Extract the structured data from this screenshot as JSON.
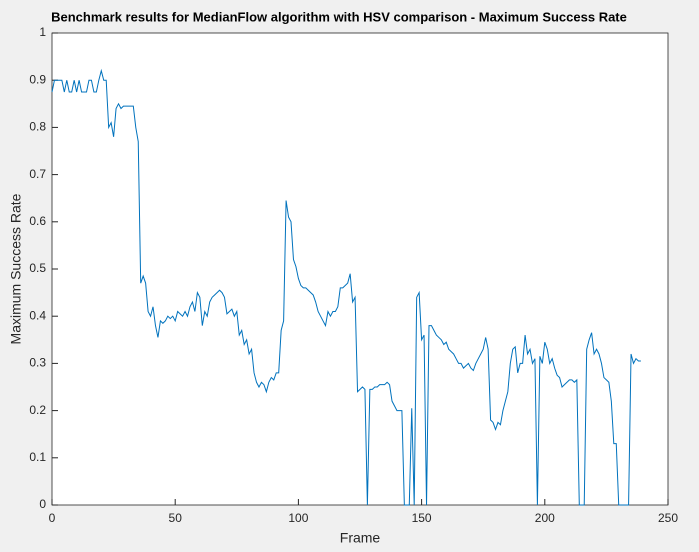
{
  "chart_data": {
    "type": "line",
    "title": "Benchmark results for MedianFlow algorithm with HSV comparison - Maximum Success Rate",
    "x_label": "Frame",
    "y_label": "Maximum Success Rate",
    "xlim": [
      0,
      250
    ],
    "xticks": [
      0,
      50,
      100,
      150,
      200,
      250
    ],
    "ylim": [
      0,
      1
    ],
    "yticks": [
      0,
      0.1,
      0.2,
      0.3,
      0.4,
      0.5,
      0.6,
      0.7,
      0.8,
      0.9,
      1
    ],
    "x": [
      0,
      1,
      2,
      3,
      4,
      5,
      6,
      7,
      8,
      9,
      10,
      11,
      12,
      13,
      14,
      15,
      16,
      17,
      18,
      19,
      20,
      21,
      22,
      23,
      24,
      25,
      26,
      27,
      28,
      29,
      30,
      31,
      32,
      33,
      34,
      35,
      36,
      37,
      38,
      39,
      40,
      41,
      42,
      43,
      44,
      45,
      46,
      47,
      48,
      49,
      50,
      51,
      52,
      53,
      54,
      55,
      56,
      57,
      58,
      59,
      60,
      61,
      62,
      63,
      64,
      65,
      66,
      67,
      68,
      69,
      70,
      71,
      72,
      73,
      74,
      75,
      76,
      77,
      78,
      79,
      80,
      81,
      82,
      83,
      84,
      85,
      86,
      87,
      88,
      89,
      90,
      91,
      92,
      93,
      94,
      95,
      96,
      97,
      98,
      99,
      100,
      101,
      102,
      103,
      104,
      105,
      106,
      107,
      108,
      109,
      110,
      111,
      112,
      113,
      114,
      115,
      116,
      117,
      118,
      119,
      120,
      121,
      122,
      123,
      124,
      125,
      126,
      127,
      128,
      129,
      130,
      131,
      132,
      133,
      134,
      135,
      136,
      137,
      138,
      139,
      140,
      141,
      142,
      143,
      144,
      145,
      146,
      147,
      148,
      149,
      150,
      151,
      152,
      153,
      154,
      155,
      156,
      157,
      158,
      159,
      160,
      161,
      162,
      163,
      164,
      165,
      166,
      167,
      168,
      169,
      170,
      171,
      172,
      173,
      174,
      175,
      176,
      177,
      178,
      179,
      180,
      181,
      182,
      183,
      184,
      185,
      186,
      187,
      188,
      189,
      190,
      191,
      192,
      193,
      194,
      195,
      196,
      197,
      198,
      199,
      200,
      201,
      202,
      203,
      204,
      205,
      206,
      207,
      208,
      209,
      210,
      211,
      212,
      213,
      214,
      215,
      216,
      217,
      218,
      219,
      220,
      221,
      222,
      223,
      224,
      225,
      226,
      227,
      228,
      229,
      230,
      231,
      232,
      233,
      234,
      235,
      236,
      237,
      238,
      239
    ],
    "series": [
      {
        "name": "Maximum Success Rate",
        "color": "#0072bd",
        "values": [
          0.875,
          0.9,
          0.9,
          0.9,
          0.9,
          0.875,
          0.9,
          0.875,
          0.875,
          0.9,
          0.875,
          0.9,
          0.875,
          0.875,
          0.875,
          0.9,
          0.9,
          0.875,
          0.875,
          0.9,
          0.92,
          0.9,
          0.9,
          0.8,
          0.81,
          0.78,
          0.84,
          0.85,
          0.84,
          0.845,
          0.845,
          0.845,
          0.845,
          0.845,
          0.8,
          0.77,
          0.47,
          0.485,
          0.47,
          0.41,
          0.4,
          0.42,
          0.38,
          0.355,
          0.39,
          0.385,
          0.39,
          0.4,
          0.395,
          0.4,
          0.39,
          0.41,
          0.405,
          0.4,
          0.41,
          0.4,
          0.42,
          0.43,
          0.41,
          0.45,
          0.44,
          0.38,
          0.41,
          0.4,
          0.43,
          0.44,
          0.445,
          0.45,
          0.455,
          0.45,
          0.44,
          0.405,
          0.41,
          0.415,
          0.4,
          0.41,
          0.36,
          0.37,
          0.34,
          0.35,
          0.32,
          0.33,
          0.28,
          0.26,
          0.25,
          0.26,
          0.255,
          0.24,
          0.26,
          0.27,
          0.265,
          0.28,
          0.28,
          0.37,
          0.39,
          0.645,
          0.61,
          0.6,
          0.52,
          0.505,
          0.48,
          0.465,
          0.46,
          0.46,
          0.455,
          0.45,
          0.445,
          0.43,
          0.41,
          0.4,
          0.39,
          0.38,
          0.41,
          0.4,
          0.41,
          0.41,
          0.42,
          0.46,
          0.46,
          0.465,
          0.47,
          0.49,
          0.43,
          0.44,
          0.24,
          0.245,
          0.25,
          0.245,
          0,
          0.245,
          0.245,
          0.25,
          0.25,
          0.255,
          0.255,
          0.255,
          0.26,
          0.255,
          0.22,
          0.21,
          0.2,
          0.2,
          0.2,
          0,
          0,
          0,
          0.205,
          0,
          0.44,
          0.45,
          0.35,
          0.36,
          0,
          0.38,
          0.38,
          0.37,
          0.36,
          0.355,
          0.35,
          0.34,
          0.345,
          0.33,
          0.325,
          0.32,
          0.31,
          0.3,
          0.3,
          0.29,
          0.295,
          0.3,
          0.29,
          0.285,
          0.3,
          0.31,
          0.32,
          0.33,
          0.355,
          0.33,
          0.18,
          0.175,
          0.16,
          0.175,
          0.17,
          0.2,
          0.22,
          0.24,
          0.3,
          0.33,
          0.335,
          0.28,
          0.3,
          0.3,
          0.36,
          0.32,
          0.33,
          0.3,
          0.31,
          0,
          0.315,
          0.3,
          0.345,
          0.33,
          0.3,
          0.31,
          0.29,
          0.275,
          0.27,
          0.25,
          0.255,
          0.26,
          0.265,
          0.265,
          0.26,
          0.265,
          0,
          0,
          0,
          0.33,
          0.35,
          0.365,
          0.32,
          0.33,
          0.32,
          0.3,
          0.27,
          0.265,
          0.26,
          0.22,
          0.13,
          0.13,
          0,
          0,
          0,
          0,
          0,
          0.32,
          0.3,
          0.31,
          0.305,
          0.305
        ]
      }
    ]
  }
}
